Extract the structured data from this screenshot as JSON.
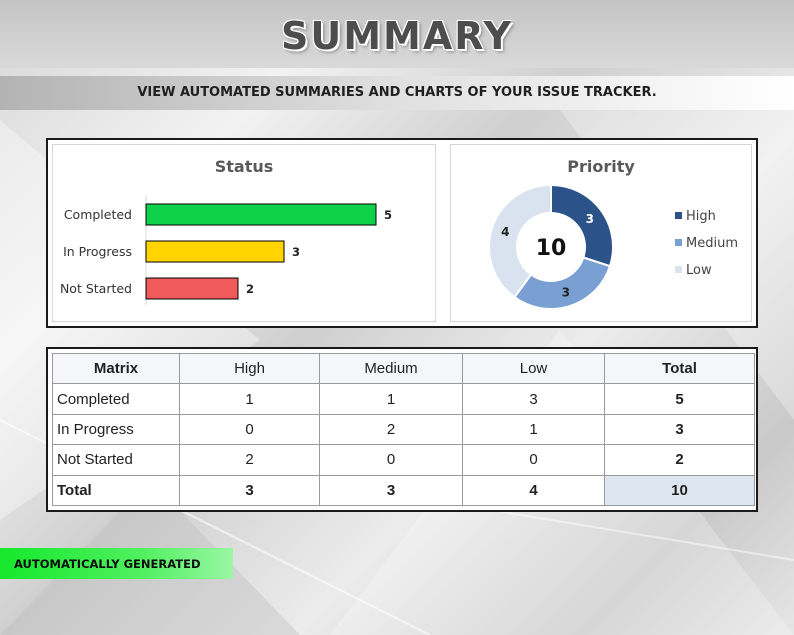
{
  "page": {
    "title": "SUMMARY",
    "subtitle": "VIEW AUTOMATED SUMMARIES AND CHARTS OF YOUR ISSUE TRACKER.",
    "footer_label": "AUTOMATICALLY GENERATED"
  },
  "colors": {
    "completed": "#0fd24a",
    "in_progress": "#ffd400",
    "not_started": "#f15a5a",
    "high": "#2b5289",
    "medium": "#7a9fd2",
    "low": "#d9e3f0",
    "footer_green": "#15e82c"
  },
  "chart_data": [
    {
      "type": "bar",
      "orientation": "horizontal",
      "title": "Status",
      "categories": [
        "Completed",
        "In Progress",
        "Not Started"
      ],
      "values": [
        5,
        3,
        2
      ],
      "data_labels": [
        "5",
        "3",
        "2"
      ],
      "bar_colors": [
        "#0fd24a",
        "#ffd400",
        "#f15a5a"
      ],
      "xlim": [
        0,
        6
      ],
      "grid": false,
      "legend": "none"
    },
    {
      "type": "pie",
      "donut": true,
      "title": "Priority",
      "center_label": "10",
      "categories": [
        "High",
        "Medium",
        "Low"
      ],
      "values": [
        3,
        3,
        4
      ],
      "data_labels": [
        "3",
        "3",
        "4"
      ],
      "slice_colors": [
        "#2b5289",
        "#7a9fd2",
        "#d9e3f0"
      ],
      "legend": "right"
    }
  ],
  "matrix": {
    "header": [
      "Matrix",
      "High",
      "Medium",
      "Low",
      "Total"
    ],
    "rows": [
      [
        "Completed",
        "1",
        "1",
        "3",
        "5"
      ],
      [
        "In Progress",
        "0",
        "2",
        "1",
        "3"
      ],
      [
        "Not Started",
        "2",
        "0",
        "0",
        "2"
      ],
      [
        "Total",
        "3",
        "3",
        "4",
        "10"
      ]
    ]
  }
}
